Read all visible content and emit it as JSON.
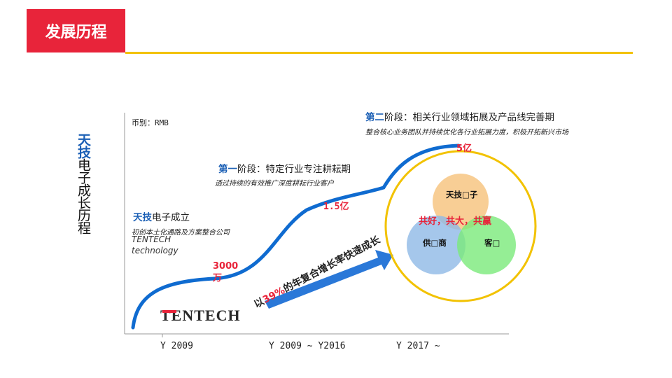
{
  "header": {
    "title": "发展历程"
  },
  "side_title": {
    "highlight": "天技",
    "rest": "电子成长历程"
  },
  "currency": "币别：RMB",
  "stage2": {
    "prefix": "第二",
    "title": "阶段：相关行业领域拓展及产品线完善期",
    "desc": "整合核心业务团队并持续优化各行业拓展力度，积极开拓新兴市场",
    "value": "5亿"
  },
  "stage1": {
    "prefix": "第一",
    "title": "阶段：特定行业专注耕耘期",
    "desc": "透过持续的有效推广深度耕耘行业客户",
    "value": "1.5亿"
  },
  "founding": {
    "prefix": "天技",
    "title": "电子成立",
    "desc": "初创本土化通路及方案整合公司",
    "name1": "TENTECH",
    "name2": "technology",
    "value": "3000\n万"
  },
  "growth_arrow": {
    "text_pre": "以",
    "text_pct": "39%",
    "text_post": "的年复合增长率快速成长"
  },
  "logo": {
    "text": "TENTECH"
  },
  "venn": {
    "top": "天技□子",
    "slogan": "共好，共大，共赢",
    "left": "供□商",
    "right": "客□"
  },
  "axis": {
    "labels": [
      "Y 2009",
      "Y 2009 ~ Y2016",
      "Y 2017 ~"
    ]
  },
  "colors": {
    "accent_red": "#e8243a",
    "accent_yellow": "#f2c200",
    "accent_blue": "#1b5fb5"
  }
}
